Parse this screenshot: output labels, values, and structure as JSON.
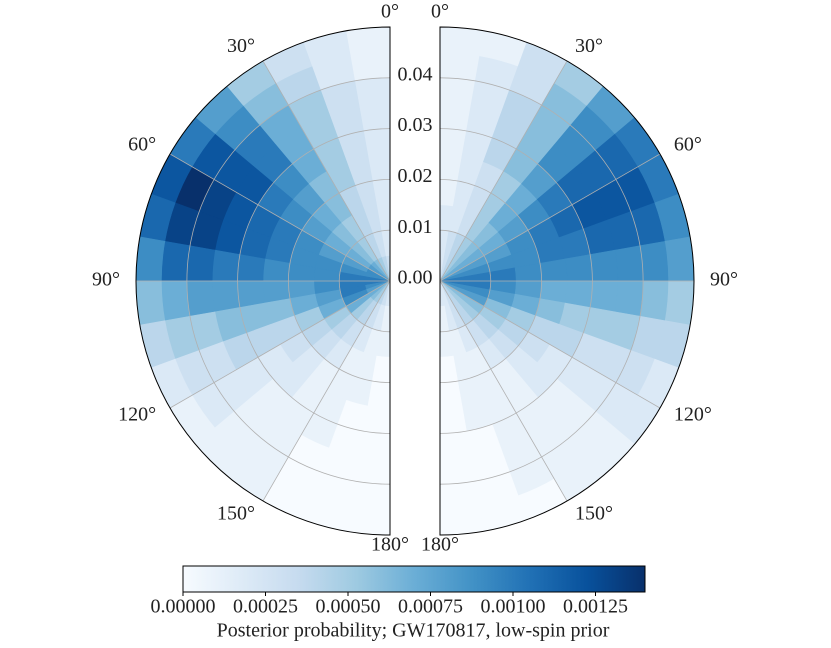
{
  "chart_data": {
    "type": "polar-heatmap",
    "colormap": "Blues",
    "theta_bins": [
      0,
      10,
      20,
      30,
      40,
      50,
      60,
      70,
      80,
      90,
      100,
      110,
      120,
      130,
      140,
      150,
      160,
      170,
      180
    ],
    "r_bins": [
      0,
      0.005,
      0.01,
      0.015,
      0.02,
      0.025,
      0.03,
      0.035,
      0.04,
      0.045,
      0.05
    ],
    "rlim": [
      0,
      0.05
    ],
    "rticks": [
      {
        "value": 0,
        "label": "0.00"
      },
      {
        "value": 0.01,
        "label": "0.01"
      },
      {
        "value": 0.02,
        "label": "0.02"
      },
      {
        "value": 0.03,
        "label": "0.03"
      },
      {
        "value": 0.04,
        "label": "0.04"
      }
    ],
    "thetaticks": [
      {
        "value": 0,
        "label": "0°"
      },
      {
        "value": 30,
        "label": "30°"
      },
      {
        "value": 60,
        "label": "60°"
      },
      {
        "value": 90,
        "label": "90°"
      },
      {
        "value": 120,
        "label": "120°"
      },
      {
        "value": 150,
        "label": "150°"
      },
      {
        "value": 180,
        "label": "180°"
      }
    ],
    "grid": true,
    "panels": [
      {
        "side": "left",
        "values": [
          [
            0.0003,
            0.0002,
            0.0002,
            0.0002,
            0.0002,
            0.0002,
            0.0002,
            0.0002,
            0.0001,
            0.0001
          ],
          [
            0.0004,
            0.0003,
            0.0003,
            0.0003,
            0.0003,
            0.0003,
            0.0003,
            0.0003,
            0.0002,
            0.0002
          ],
          [
            0.0005,
            0.0004,
            0.0004,
            0.0004,
            0.0005,
            0.0005,
            0.0005,
            0.0005,
            0.0004,
            0.0003
          ],
          [
            0.0006,
            0.0005,
            0.0005,
            0.0006,
            0.0006,
            0.0007,
            0.0007,
            0.0007,
            0.0006,
            0.0005
          ],
          [
            0.0007,
            0.0006,
            0.0006,
            0.0007,
            0.0008,
            0.0009,
            0.001,
            0.001,
            0.0009,
            0.0008
          ],
          [
            0.0008,
            0.0007,
            0.0007,
            0.0008,
            0.0009,
            0.001,
            0.0012,
            0.0012,
            0.0012,
            0.001
          ],
          [
            0.0009,
            0.0008,
            0.0008,
            0.0009,
            0.001,
            0.0011,
            0.0012,
            0.0013,
            0.0014,
            0.0012
          ],
          [
            0.0009,
            0.0009,
            0.0009,
            0.0009,
            0.001,
            0.0011,
            0.0012,
            0.0013,
            0.0013,
            0.0011
          ],
          [
            0.001,
            0.001,
            0.0009,
            0.0009,
            0.0009,
            0.001,
            0.001,
            0.0011,
            0.0011,
            0.0009
          ],
          [
            0.001,
            0.001,
            0.0009,
            0.0008,
            0.0008,
            0.0008,
            0.0008,
            0.0008,
            0.0007,
            0.0006
          ],
          [
            0.0009,
            0.001,
            0.0008,
            0.0007,
            0.0006,
            0.0006,
            0.0006,
            0.0005,
            0.0005,
            0.0004
          ],
          [
            0.0008,
            0.0009,
            0.0007,
            0.0005,
            0.0004,
            0.0004,
            0.0004,
            0.0003,
            0.0003,
            0.0002
          ],
          [
            0.0007,
            0.0007,
            0.0005,
            0.0004,
            0.0003,
            0.0002,
            0.0002,
            0.0002,
            0.0002,
            0.0001
          ],
          [
            0.0006,
            0.0005,
            0.0004,
            0.0003,
            0.0002,
            0.0002,
            0.0001,
            0.0001,
            0.0001,
            0.0001
          ],
          [
            0.0005,
            0.0004,
            0.0003,
            0.0002,
            0.0001,
            0.0001,
            0.0001,
            0.0001,
            0.0001,
            0.0001
          ],
          [
            0.0004,
            0.0003,
            0.0002,
            0.0001,
            0.0001,
            0.0001,
            0.0001,
            0,
            0,
            0
          ],
          [
            0.0003,
            0.0002,
            0.0001,
            0.0001,
            0.0001,
            0,
            0,
            0,
            0,
            0
          ],
          [
            0.0002,
            0.0001,
            0.0001,
            0,
            0,
            0,
            0,
            0,
            0,
            0
          ]
        ]
      },
      {
        "side": "right",
        "values": [
          [
            0.0002,
            0.0002,
            0.0002,
            0.0001,
            0.0001,
            0.0001,
            0.0001,
            0.0001,
            0.0001,
            0.0001
          ],
          [
            0.0003,
            0.0003,
            0.0002,
            0.0002,
            0.0002,
            0.0002,
            0.0002,
            0.0002,
            0.0002,
            0.0001
          ],
          [
            0.0004,
            0.0004,
            0.0003,
            0.0003,
            0.0003,
            0.0004,
            0.0004,
            0.0004,
            0.0003,
            0.0003
          ],
          [
            0.0005,
            0.0005,
            0.0005,
            0.0005,
            0.0005,
            0.0006,
            0.0006,
            0.0006,
            0.0006,
            0.0005
          ],
          [
            0.0006,
            0.0006,
            0.0006,
            0.0007,
            0.0007,
            0.0008,
            0.0009,
            0.0009,
            0.0009,
            0.0008
          ],
          [
            0.0007,
            0.0007,
            0.0007,
            0.0008,
            0.0009,
            0.001,
            0.0011,
            0.0011,
            0.0011,
            0.001
          ],
          [
            0.0008,
            0.0008,
            0.0008,
            0.0009,
            0.001,
            0.0011,
            0.0012,
            0.0012,
            0.0012,
            0.001
          ],
          [
            0.0009,
            0.0009,
            0.0009,
            0.0009,
            0.001,
            0.001,
            0.0011,
            0.0011,
            0.0011,
            0.0009
          ],
          [
            0.001,
            0.001,
            0.001,
            0.0009,
            0.0009,
            0.0009,
            0.0009,
            0.0009,
            0.0009,
            0.0008
          ],
          [
            0.001,
            0.001,
            0.0009,
            0.0008,
            0.0007,
            0.0007,
            0.0007,
            0.0007,
            0.0006,
            0.0005
          ],
          [
            0.0009,
            0.0009,
            0.0008,
            0.0007,
            0.0006,
            0.0005,
            0.0005,
            0.0005,
            0.0004,
            0.0004
          ],
          [
            0.0008,
            0.0008,
            0.0006,
            0.0005,
            0.0004,
            0.0004,
            0.0003,
            0.0003,
            0.0003,
            0.0002
          ],
          [
            0.0006,
            0.0006,
            0.0005,
            0.0004,
            0.0003,
            0.0002,
            0.0002,
            0.0002,
            0.0002,
            0.0002
          ],
          [
            0.0005,
            0.0005,
            0.0004,
            0.0003,
            0.0002,
            0.0002,
            0.0001,
            0.0001,
            0.0001,
            0.0001
          ],
          [
            0.0004,
            0.0004,
            0.0003,
            0.0002,
            0.0001,
            0.0001,
            0.0001,
            0.0001,
            0.0001,
            0.0001
          ],
          [
            0.0003,
            0.0003,
            0.0002,
            0.0001,
            0.0001,
            0.0001,
            0.0001,
            0.0001,
            0.0001,
            0
          ],
          [
            0.0002,
            0.0002,
            0.0001,
            0.0001,
            0.0001,
            0.0001,
            0,
            0,
            0,
            0
          ],
          [
            0.0002,
            0.0001,
            0.0001,
            0,
            0,
            0,
            0,
            0,
            0,
            0
          ]
        ]
      }
    ],
    "clim": [
      0,
      0.0014
    ],
    "cticks": [
      {
        "value": 0,
        "label": "0.00000"
      },
      {
        "value": 0.00025,
        "label": "0.00025"
      },
      {
        "value": 0.0005,
        "label": "0.00050"
      },
      {
        "value": 0.00075,
        "label": "0.00075"
      },
      {
        "value": 0.001,
        "label": "0.00100"
      },
      {
        "value": 0.00125,
        "label": "0.00125"
      }
    ],
    "colorbar_label": "Posterior probability; GW170817, low-spin prior"
  }
}
